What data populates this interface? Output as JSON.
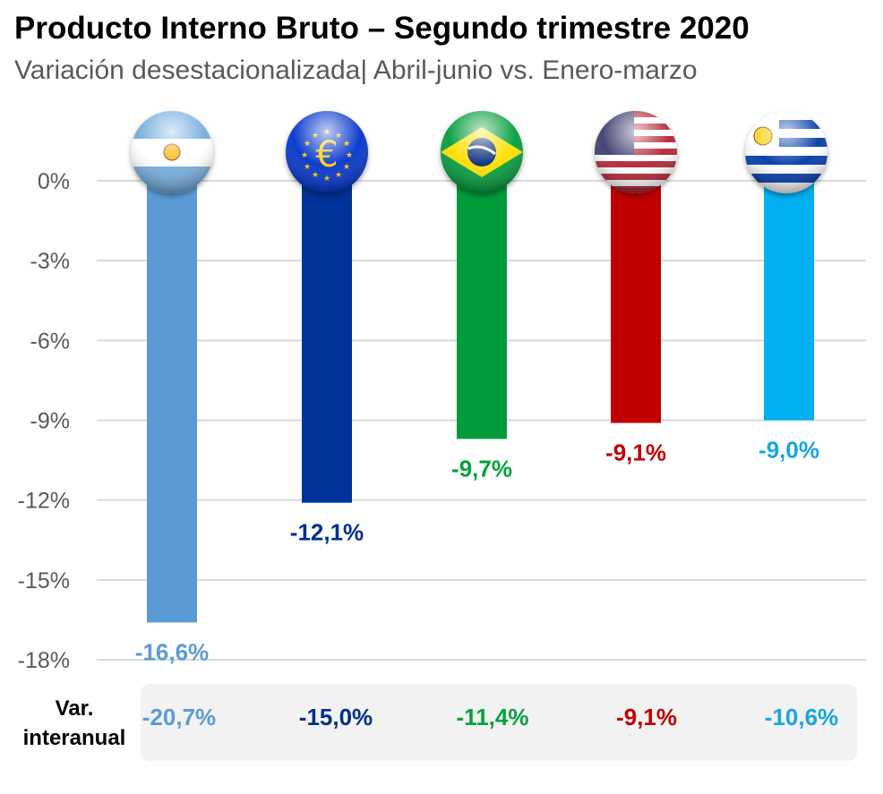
{
  "header": {
    "title": "Producto Interno Bruto – Segundo trimestre 2020",
    "subtitle": "Variación desestacionalizada| Abril-junio vs. Enero-marzo"
  },
  "chart_data": {
    "type": "bar",
    "title": "Producto Interno Bruto – Segundo trimestre 2020",
    "subtitle": "Variación desestacionalizada| Abril-junio vs. Enero-marzo",
    "categories": [
      "Argentina",
      "Zona Euro",
      "Brasil",
      "Estados Unidos",
      "Uruguay"
    ],
    "category_icons": [
      "argentina-flag-icon",
      "euro-flag-icon",
      "brazil-flag-icon",
      "usa-flag-icon",
      "uruguay-flag-icon"
    ],
    "values": [
      -16.6,
      -12.1,
      -9.7,
      -9.1,
      -9.0
    ],
    "value_labels": [
      "-16,6%",
      "-12,1%",
      "-9,7%",
      "-9,1%",
      "-9,0%"
    ],
    "colors": [
      "#5b9bd5",
      "#003399",
      "#009c3b",
      "#c00000",
      "#00b0f0"
    ],
    "label_colors": [
      "#5b9bd5",
      "#002f8c",
      "#00a33e",
      "#c00000",
      "#15a6e0"
    ],
    "ylim": [
      -18,
      0
    ],
    "yticks": [
      0,
      -3,
      -6,
      -9,
      -12,
      -15,
      -18
    ],
    "ytick_labels": [
      "0%",
      "-3%",
      "-6%",
      "-9%",
      "-12%",
      "-15%",
      "-18%"
    ],
    "grid": true,
    "xlabel": "",
    "ylabel": "",
    "secondary_row": {
      "label_line1": "Var.",
      "label_line2": "interanual",
      "values": [
        -20.7,
        -15.0,
        -11.4,
        -9.1,
        -10.6
      ],
      "value_labels": [
        "-20,7%",
        "-15,0%",
        "-11,4%",
        "-9,1%",
        "-10,6%"
      ]
    }
  }
}
